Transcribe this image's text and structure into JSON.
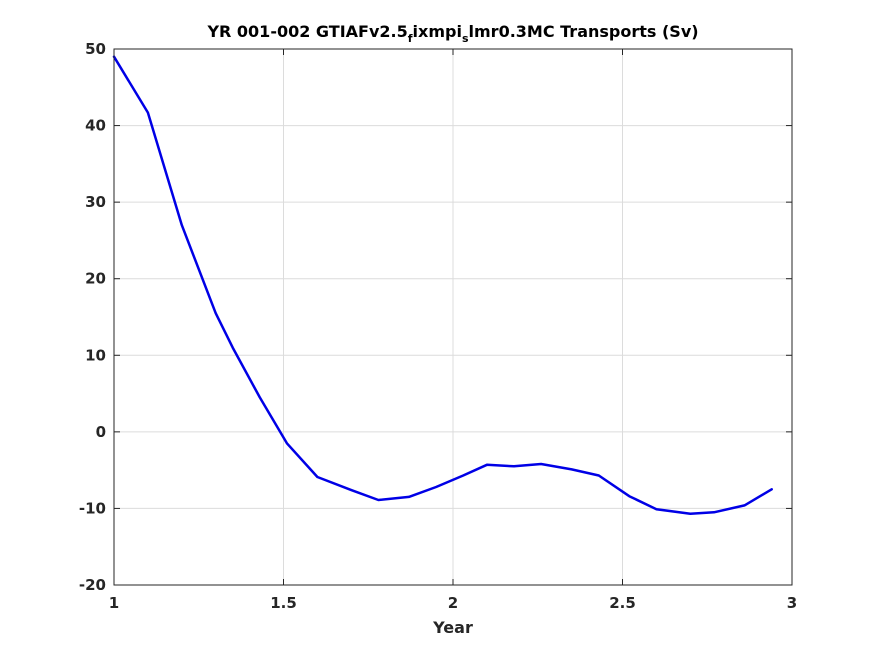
{
  "chart_data": {
    "type": "line",
    "title": {
      "part1": "YR 001-002 GTIAFv2.5",
      "sub1": "f",
      "part2": "ixmpi",
      "sub2": "s",
      "part3": "lmr0.3MC Transports (Sv)"
    },
    "xlabel": "Year",
    "ylabel": "",
    "xlim": [
      1,
      3
    ],
    "ylim": [
      -20,
      50
    ],
    "xticks": [
      1,
      1.5,
      2,
      2.5,
      3
    ],
    "xtick_labels": [
      "1",
      "1.5",
      "2",
      "2.5",
      "3"
    ],
    "yticks": [
      -20,
      -10,
      0,
      10,
      20,
      30,
      40,
      50
    ],
    "ytick_labels": [
      "-20",
      "-10",
      "0",
      "10",
      "20",
      "30",
      "40",
      "50"
    ],
    "grid": true,
    "series": [
      {
        "color": "#0000e6",
        "x": [
          1.0,
          1.1,
          1.2,
          1.3,
          1.35,
          1.43,
          1.51,
          1.6,
          1.7,
          1.78,
          1.87,
          1.95,
          2.03,
          2.1,
          2.18,
          2.26,
          2.35,
          2.43,
          2.52,
          2.6,
          2.7,
          2.77,
          2.86,
          2.94
        ],
        "y": [
          49,
          41.7,
          27,
          15.5,
          11,
          4.5,
          -1.5,
          -5.9,
          -7.6,
          -8.9,
          -8.5,
          -7.2,
          -5.7,
          -4.3,
          -4.5,
          -4.2,
          -4.9,
          -5.7,
          -8.4,
          -10.1,
          -10.7,
          -10.5,
          -9.6,
          -7.5
        ]
      }
    ]
  }
}
